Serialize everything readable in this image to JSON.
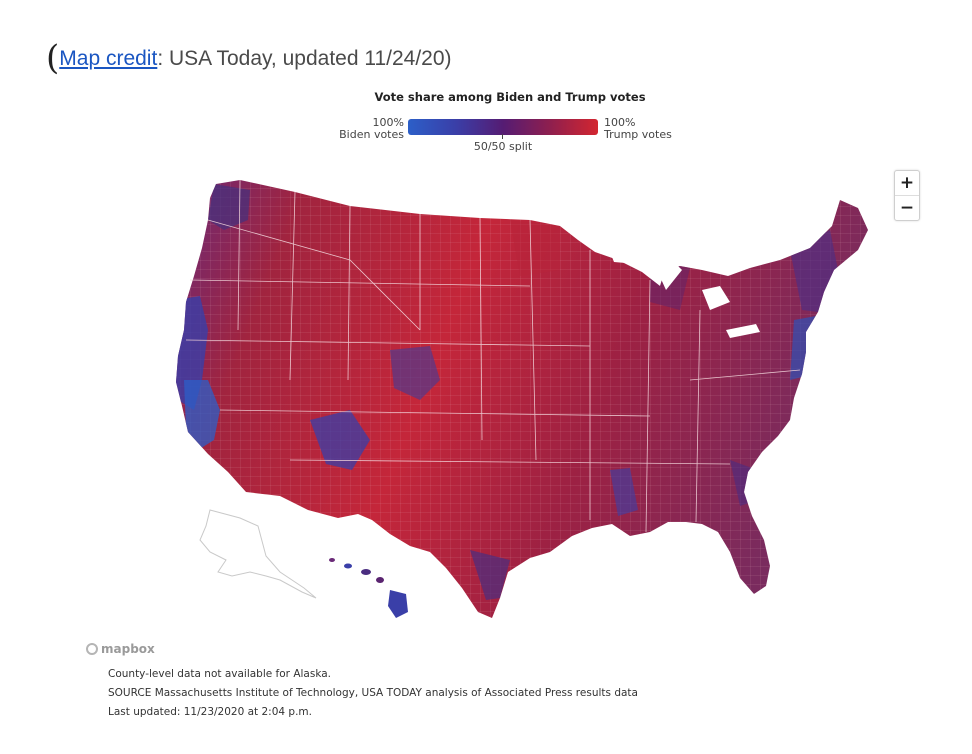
{
  "credit": {
    "open_paren": "(",
    "link_text": "Map credit",
    "rest": ": USA Today, updated 11/24/20)"
  },
  "legend": {
    "title": "Vote share among Biden and Trump votes",
    "left_line1": "100%",
    "left_line2": "Biden votes",
    "right_line1": "100%",
    "right_line2": "Trump votes",
    "mid": "50/50 split",
    "color_left": "#2c5fc8",
    "color_mid": "#551c73",
    "color_right": "#d32630"
  },
  "zoom": {
    "in_label": "+",
    "out_label": "−"
  },
  "attribution": {
    "mapbox": "mapbox"
  },
  "notes": [
    "County-level data not available for Alaska.",
    "SOURCE Massachusetts Institute of Technology, USA TODAY analysis of Associated Press results data",
    "Last updated: 11/23/2020 at 2:04 p.m."
  ]
}
